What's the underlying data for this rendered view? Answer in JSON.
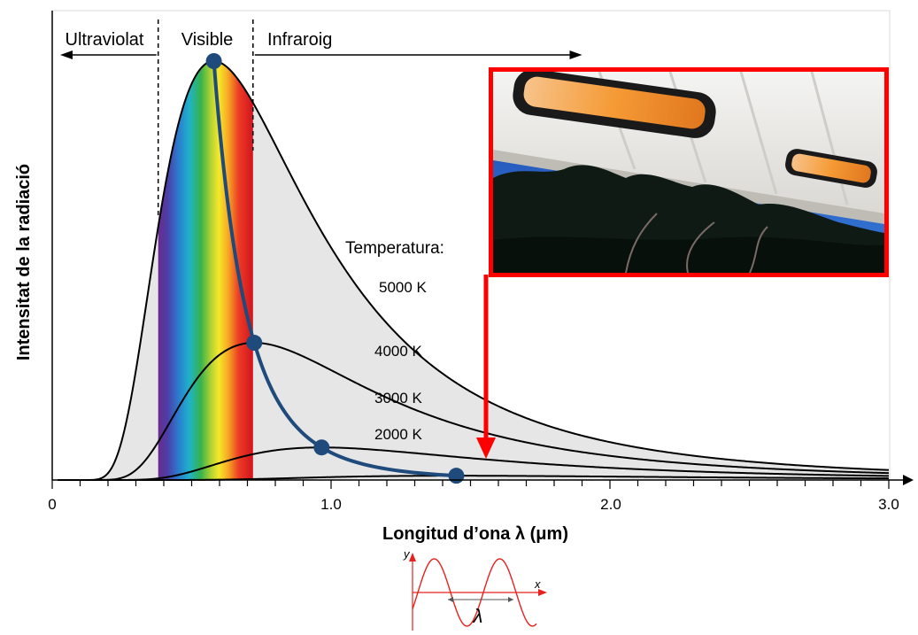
{
  "chart_data": {
    "type": "line",
    "title": "",
    "xlabel": "Longitud d’ona λ (μm)",
    "ylabel": "Intensitat de la radiació",
    "xlim": [
      0,
      3.0
    ],
    "x_ticks": [
      "0",
      "1.0",
      "2.0",
      "3.0"
    ],
    "regions": [
      {
        "label": "Ultraviolat",
        "x_range": [
          0,
          0.38
        ]
      },
      {
        "label": "Visible",
        "x_range": [
          0.38,
          0.72
        ]
      },
      {
        "label": "Infraroig",
        "x_range": [
          0.72,
          1.9
        ]
      }
    ],
    "legend_title": "Temperatura:",
    "series": [
      {
        "name": "5000 K",
        "temperature": 5000,
        "peak_x": 0.58
      },
      {
        "name": "4000 K",
        "temperature": 4000,
        "peak_x": 0.72
      },
      {
        "name": "3000 K",
        "temperature": 3000,
        "peak_x": 0.88
      },
      {
        "name": "2000 K",
        "temperature": 2000,
        "peak_x": 1.22
      }
    ],
    "wien_line_points_x": [
      0.58,
      0.72,
      0.88,
      1.22
    ],
    "colors": {
      "curves": "#000000",
      "area_fill": "#e6e6e6",
      "wien_line": "#1f4a7c",
      "photo_frame": "#ff0000",
      "wave": "#e8201e"
    }
  },
  "inset_wave": {
    "y_label": "y",
    "x_label": "x",
    "lambda_label": "λ"
  },
  "photo": {
    "description_icon": "patio-heater-photo"
  }
}
